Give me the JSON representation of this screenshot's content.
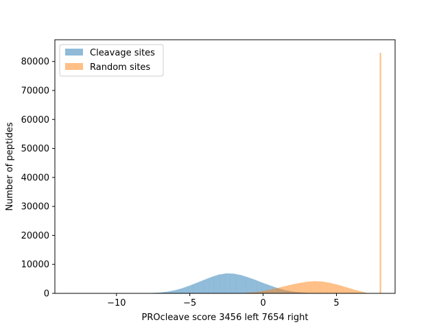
{
  "chart_data": {
    "type": "bar",
    "title": "",
    "xlabel": "PROcleave score 3456 left 7654 right",
    "ylabel": "Number of peptides",
    "xlim": [
      -14.2,
      9.0
    ],
    "ylim": [
      0,
      87500
    ],
    "x_ticks": [
      -10,
      -5,
      0,
      5
    ],
    "y_ticks": [
      0,
      10000,
      20000,
      30000,
      40000,
      50000,
      60000,
      70000,
      80000
    ],
    "legend_position": "upper-left",
    "grid": false,
    "bin_width": 0.1,
    "series": [
      {
        "name": "Cleavage sites",
        "color": "#1f77b4",
        "opacity": 0.5,
        "bins": [
          {
            "x": -9.0,
            "count": 20
          },
          {
            "x": -8.5,
            "count": 40
          },
          {
            "x": -8.0,
            "count": 80
          },
          {
            "x": -7.5,
            "count": 150
          },
          {
            "x": -7.0,
            "count": 300
          },
          {
            "x": -6.5,
            "count": 600
          },
          {
            "x": -6.0,
            "count": 1100
          },
          {
            "x": -5.5,
            "count": 1800
          },
          {
            "x": -5.0,
            "count": 2700
          },
          {
            "x": -4.5,
            "count": 3700
          },
          {
            "x": -4.0,
            "count": 4700
          },
          {
            "x": -3.5,
            "count": 5700
          },
          {
            "x": -3.0,
            "count": 6500
          },
          {
            "x": -2.5,
            "count": 6900
          },
          {
            "x": -2.0,
            "count": 6800
          },
          {
            "x": -1.5,
            "count": 6300
          },
          {
            "x": -1.0,
            "count": 5500
          },
          {
            "x": -0.5,
            "count": 4600
          },
          {
            "x": 0.0,
            "count": 3600
          },
          {
            "x": 0.5,
            "count": 2700
          },
          {
            "x": 1.0,
            "count": 1800
          },
          {
            "x": 1.5,
            "count": 1100
          },
          {
            "x": 2.0,
            "count": 650
          },
          {
            "x": 2.5,
            "count": 350
          },
          {
            "x": 3.0,
            "count": 170
          },
          {
            "x": 3.5,
            "count": 80
          },
          {
            "x": 4.0,
            "count": 30
          }
        ]
      },
      {
        "name": "Random sites",
        "color": "#ff7f0e",
        "opacity": 0.5,
        "bins": [
          {
            "x": -2.0,
            "count": 40
          },
          {
            "x": -1.5,
            "count": 100
          },
          {
            "x": -1.0,
            "count": 250
          },
          {
            "x": -0.5,
            "count": 450
          },
          {
            "x": 0.0,
            "count": 800
          },
          {
            "x": 0.5,
            "count": 1300
          },
          {
            "x": 1.0,
            "count": 1900
          },
          {
            "x": 1.5,
            "count": 2500
          },
          {
            "x": 2.0,
            "count": 3100
          },
          {
            "x": 2.5,
            "count": 3600
          },
          {
            "x": 3.0,
            "count": 4000
          },
          {
            "x": 3.5,
            "count": 4200
          },
          {
            "x": 4.0,
            "count": 4100
          },
          {
            "x": 4.5,
            "count": 3700
          },
          {
            "x": 5.0,
            "count": 3100
          },
          {
            "x": 5.5,
            "count": 2400
          },
          {
            "x": 6.0,
            "count": 1600
          },
          {
            "x": 6.5,
            "count": 900
          },
          {
            "x": 7.0,
            "count": 250
          },
          {
            "x": 8.0,
            "count": 83000
          }
        ]
      }
    ]
  }
}
